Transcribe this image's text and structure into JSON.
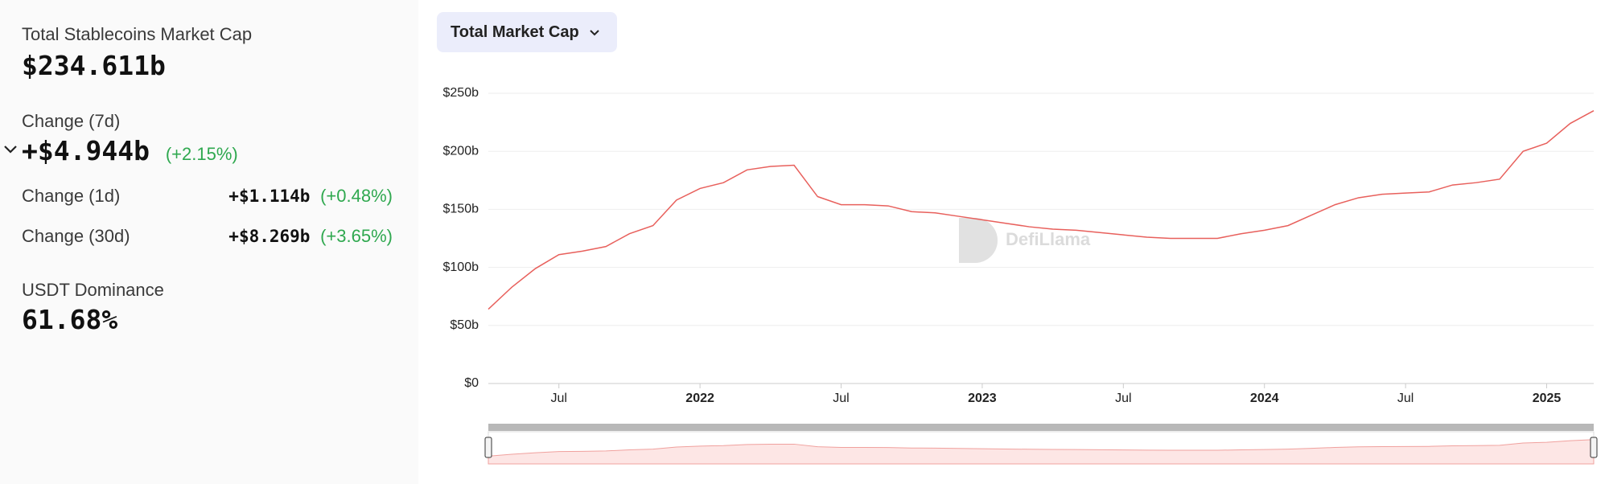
{
  "sidebar": {
    "total": {
      "label": "Total Stablecoins Market Cap",
      "value": "$234.611b"
    },
    "change_7d": {
      "label": "Change (7d)",
      "value": "+$4.944b",
      "percent": "(+2.15%)"
    },
    "change_1d": {
      "label": "Change (1d)",
      "value": "+$1.114b",
      "percent": "(+0.48%)"
    },
    "change_30d": {
      "label": "Change (30d)",
      "value": "+$8.269b",
      "percent": "(+3.65%)"
    },
    "dominance": {
      "label": "USDT Dominance",
      "value": "61.68%"
    }
  },
  "dropdown": "Total Market Cap",
  "watermark": "DefiLlama",
  "chart_data": {
    "type": "line",
    "x": [
      "2021-04",
      "2021-05",
      "2021-06",
      "2021-07",
      "2021-08",
      "2021-09",
      "2021-10",
      "2021-11",
      "2021-12",
      "2022-01",
      "2022-02",
      "2022-03",
      "2022-04",
      "2022-05",
      "2022-06",
      "2022-07",
      "2022-08",
      "2022-09",
      "2022-10",
      "2022-11",
      "2022-12",
      "2023-01",
      "2023-02",
      "2023-03",
      "2023-04",
      "2023-05",
      "2023-06",
      "2023-07",
      "2023-08",
      "2023-09",
      "2023-10",
      "2023-11",
      "2023-12",
      "2024-01",
      "2024-02",
      "2024-03",
      "2024-04",
      "2024-05",
      "2024-06",
      "2024-07",
      "2024-08",
      "2024-09",
      "2024-10",
      "2024-11",
      "2024-12",
      "2025-01",
      "2025-02",
      "2025-03"
    ],
    "series": [
      {
        "name": "Total Market Cap",
        "color": "#e8605c",
        "values": [
          64,
          83,
          99,
          111,
          114,
          118,
          129,
          136,
          158,
          168,
          173,
          184,
          187,
          188,
          161,
          154,
          154,
          153,
          148,
          147,
          144,
          141,
          138,
          135,
          133,
          132,
          130,
          128,
          126,
          125,
          125,
          125,
          129,
          132,
          136,
          145,
          154,
          160,
          163,
          164,
          165,
          171,
          173,
          176,
          200,
          207,
          224,
          235
        ]
      }
    ],
    "xlim": [
      "2021-04",
      "2025-03"
    ],
    "xticks": [
      {
        "value": "2021-07",
        "label": "Jul"
      },
      {
        "value": "2022-01",
        "label": "2022"
      },
      {
        "value": "2022-07",
        "label": "Jul"
      },
      {
        "value": "2023-01",
        "label": "2023"
      },
      {
        "value": "2023-07",
        "label": "Jul"
      },
      {
        "value": "2024-01",
        "label": "2024"
      },
      {
        "value": "2024-07",
        "label": "Jul"
      },
      {
        "value": "2025-01",
        "label": "2025"
      }
    ],
    "ylim": [
      0,
      250
    ],
    "yticks": [
      {
        "value": 0,
        "label": "$0"
      },
      {
        "value": 50,
        "label": "$50b"
      },
      {
        "value": 100,
        "label": "$100b"
      },
      {
        "value": 150,
        "label": "$150b"
      },
      {
        "value": 200,
        "label": "$200b"
      },
      {
        "value": 250,
        "label": "$250b"
      }
    ],
    "grid": true
  }
}
